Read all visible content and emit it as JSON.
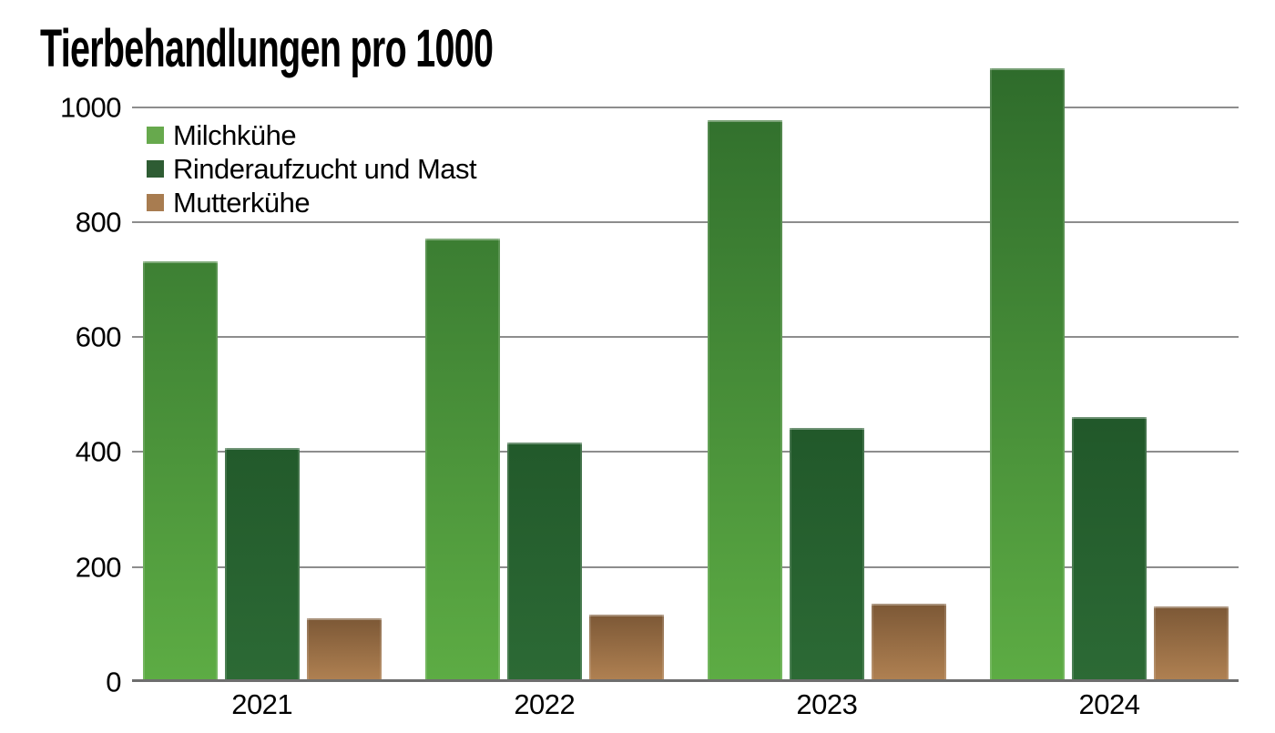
{
  "title": "Tierbehandlungen pro 1000",
  "colors": {
    "background": "#ffffff",
    "gridline": "#8d8d8d",
    "axis_baseline": "#6e6e6e",
    "text": "#000000",
    "milchkuehe_green": "#67a94d",
    "rinderaufzucht_dark_green": "#2e5c33",
    "mutterkuehe_brown": "#a87c50"
  },
  "chart_data": {
    "type": "bar",
    "title": "Tierbehandlungen pro 1000",
    "categories": [
      "2021",
      "2022",
      "2023",
      "2024"
    ],
    "series": [
      {
        "name": "Milchkühe",
        "legend_color": "#67a94d",
        "gradient_top": "#2e6b2b",
        "gradient_bottom": "#5dac44",
        "values": [
          730,
          770,
          975,
          1065
        ]
      },
      {
        "name": "Rinderaufzucht und Mast",
        "legend_color": "#2e5c33",
        "gradient_top": "#123f1a",
        "gradient_bottom": "#2c6a35",
        "values": [
          405,
          415,
          440,
          460
        ]
      },
      {
        "name": "Mutterkühe",
        "legend_color": "#a87c50",
        "gradient_top": "#7c5836",
        "gradient_bottom": "#b08152",
        "values": [
          110,
          115,
          135,
          130
        ]
      }
    ],
    "xlabel": "",
    "ylabel": "",
    "ylim": [
      0,
      1000
    ],
    "yticks": [
      0,
      200,
      400,
      600,
      800,
      1000
    ],
    "grid": true,
    "legend_position": "top-left"
  }
}
